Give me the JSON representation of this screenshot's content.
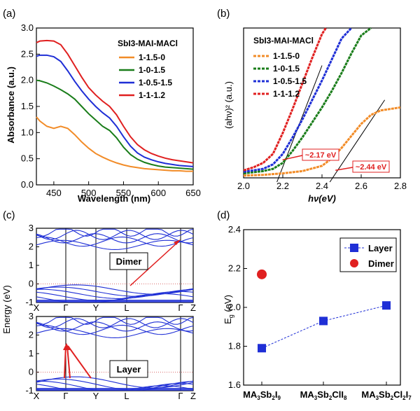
{
  "chart_data": [
    {
      "panel_label": "(a)",
      "type": "line",
      "xlabel": "Wavelength (nm)",
      "ylabel": "Absorbance (a.u.)",
      "xlim": [
        425,
        650
      ],
      "ylim": [
        0,
        3.0
      ],
      "xticks": [
        450,
        500,
        550,
        600,
        650
      ],
      "yticks": [
        0.0,
        0.5,
        1.0,
        1.5,
        2.0,
        2.5,
        3.0
      ],
      "grid": false,
      "legend_title": "SbI3-MAI-MACl",
      "legend_position": "top-right",
      "series": [
        {
          "name": "1-1.5-0",
          "color": "#f28c28",
          "x": [
            425,
            430,
            440,
            450,
            460,
            470,
            480,
            490,
            500,
            510,
            520,
            530,
            540,
            550,
            560,
            570,
            580,
            590,
            600,
            610,
            620,
            630,
            640,
            650
          ],
          "y": [
            1.3,
            1.22,
            1.12,
            1.08,
            1.12,
            1.08,
            0.96,
            0.82,
            0.7,
            0.6,
            0.53,
            0.47,
            0.42,
            0.38,
            0.35,
            0.33,
            0.31,
            0.3,
            0.29,
            0.28,
            0.27,
            0.27,
            0.26,
            0.26
          ]
        },
        {
          "name": "1-0-1.5",
          "color": "#1a7d1a",
          "x": [
            425,
            430,
            440,
            450,
            460,
            470,
            480,
            490,
            500,
            510,
            520,
            530,
            540,
            550,
            560,
            570,
            580,
            590,
            600,
            610,
            620,
            630,
            640,
            650
          ],
          "y": [
            2.0,
            1.99,
            1.95,
            1.89,
            1.82,
            1.74,
            1.64,
            1.5,
            1.36,
            1.24,
            1.12,
            1.04,
            0.9,
            0.72,
            0.58,
            0.49,
            0.43,
            0.39,
            0.36,
            0.34,
            0.33,
            0.32,
            0.31,
            0.3
          ]
        },
        {
          "name": "1-0.5-1.5",
          "color": "#1f2fd6",
          "x": [
            425,
            430,
            440,
            450,
            460,
            470,
            480,
            490,
            500,
            510,
            520,
            530,
            540,
            550,
            560,
            570,
            580,
            590,
            600,
            610,
            620,
            630,
            640,
            650
          ],
          "y": [
            2.46,
            2.48,
            2.48,
            2.45,
            2.36,
            2.18,
            1.98,
            1.8,
            1.64,
            1.5,
            1.38,
            1.28,
            1.12,
            0.92,
            0.74,
            0.61,
            0.53,
            0.48,
            0.44,
            0.41,
            0.39,
            0.37,
            0.36,
            0.35
          ]
        },
        {
          "name": "1-1-1.2",
          "color": "#e02020",
          "x": [
            425,
            430,
            440,
            450,
            460,
            470,
            480,
            490,
            500,
            510,
            520,
            530,
            540,
            550,
            560,
            570,
            580,
            590,
            600,
            610,
            620,
            630,
            640,
            650
          ],
          "y": [
            2.72,
            2.75,
            2.76,
            2.75,
            2.68,
            2.5,
            2.28,
            2.06,
            1.86,
            1.72,
            1.6,
            1.5,
            1.34,
            1.12,
            0.92,
            0.77,
            0.67,
            0.6,
            0.55,
            0.51,
            0.48,
            0.46,
            0.44,
            0.42
          ]
        }
      ]
    },
    {
      "panel_label": "(b)",
      "type": "scatter",
      "xlabel": "hν(eV)",
      "ylabel": "(ahν)² (a.u.)",
      "xlim": [
        2.0,
        2.8
      ],
      "ylim": [
        0,
        1.0
      ],
      "xticks": [
        2.0,
        2.2,
        2.4,
        2.6,
        2.8
      ],
      "yticks": [],
      "grid": false,
      "legend_title": "SbI3-MAI-MACl",
      "legend_position": "top-left",
      "annotations": [
        {
          "text": "~2.17 eV",
          "x": 2.17,
          "color": "#e02020"
        },
        {
          "text": "~2.44 eV",
          "x": 2.44,
          "color": "#e02020"
        }
      ],
      "series": [
        {
          "name": "1-1.5-0",
          "color": "#f28c28",
          "x": [
            2.0,
            2.1,
            2.2,
            2.3,
            2.4,
            2.45,
            2.5,
            2.55,
            2.6,
            2.65,
            2.7,
            2.75,
            2.8
          ],
          "y": [
            0.015,
            0.02,
            0.03,
            0.045,
            0.08,
            0.13,
            0.2,
            0.28,
            0.36,
            0.42,
            0.45,
            0.46,
            0.47
          ]
        },
        {
          "name": "1-0-1.5",
          "color": "#1a7d1a",
          "x": [
            2.0,
            2.1,
            2.15,
            2.2,
            2.25,
            2.3,
            2.35,
            2.4,
            2.45,
            2.5,
            2.55,
            2.6,
            2.65
          ],
          "y": [
            0.03,
            0.045,
            0.06,
            0.1,
            0.18,
            0.27,
            0.37,
            0.47,
            0.58,
            0.7,
            0.83,
            0.95,
            1.0
          ]
        },
        {
          "name": "1-0.5-1.5",
          "color": "#1f2fd6",
          "x": [
            2.0,
            2.1,
            2.15,
            2.2,
            2.25,
            2.3,
            2.35,
            2.4,
            2.45,
            2.5,
            2.55
          ],
          "y": [
            0.04,
            0.06,
            0.09,
            0.16,
            0.27,
            0.39,
            0.52,
            0.65,
            0.79,
            0.93,
            1.0
          ]
        },
        {
          "name": "1-1-1.2",
          "color": "#e02020",
          "x": [
            2.0,
            2.05,
            2.1,
            2.15,
            2.2,
            2.25,
            2.3,
            2.35,
            2.4,
            2.42
          ],
          "y": [
            0.05,
            0.07,
            0.1,
            0.16,
            0.3,
            0.46,
            0.63,
            0.8,
            0.96,
            1.0
          ]
        }
      ]
    },
    {
      "panel_label": "(c)",
      "type": "line",
      "ylabel": "Energy (eV)",
      "kpoints": [
        "X",
        "Γ",
        "Y",
        "L",
        "Γ",
        "Z"
      ],
      "ylim": [
        -1,
        3
      ],
      "yticks": [
        -1,
        0,
        1,
        2,
        3
      ],
      "subplots": [
        {
          "label": "Dimer"
        },
        {
          "label": "Layer"
        }
      ]
    },
    {
      "panel_label": "(d)",
      "type": "scatter",
      "ylabel": "Eg (eV)",
      "ylim": [
        1.6,
        2.4
      ],
      "yticks": [
        1.6,
        1.8,
        2.0,
        2.2,
        2.4
      ],
      "categories": [
        "MA3Sb2I9",
        "MA3Sb2ClI8",
        "MA3Sb2Cl2I7"
      ],
      "legend_position": "top-right",
      "series": [
        {
          "name": "Layer",
          "color": "#1f2fd6",
          "marker": "square",
          "values": [
            1.79,
            1.93,
            2.01
          ]
        },
        {
          "name": "Dimer",
          "color": "#e02020",
          "marker": "circle",
          "values": [
            2.17,
            null,
            null
          ]
        }
      ]
    }
  ]
}
